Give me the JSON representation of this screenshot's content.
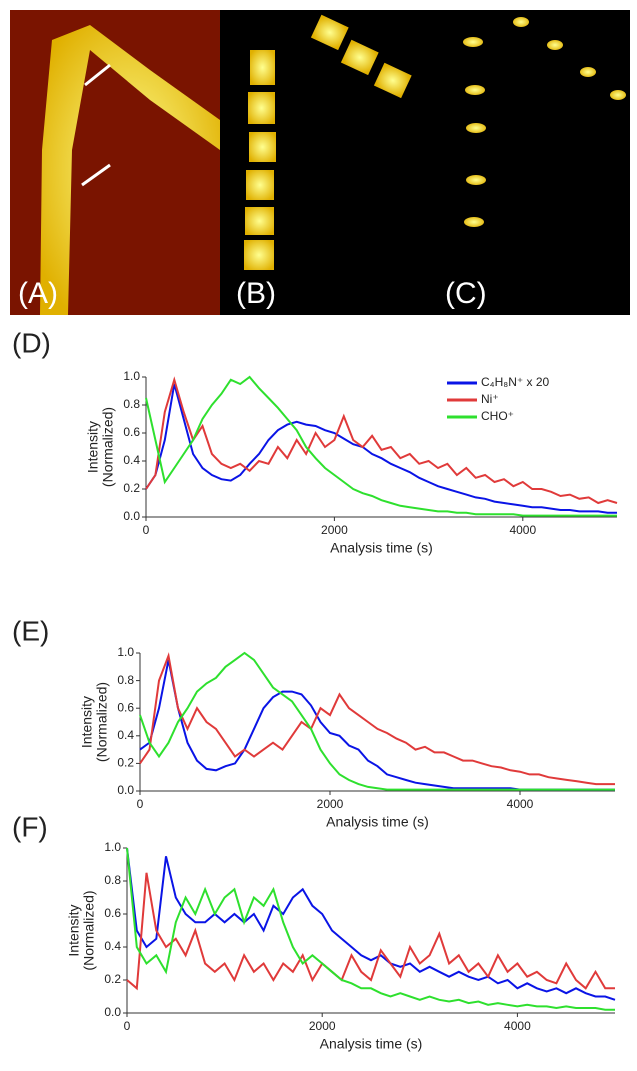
{
  "image_panels": [
    {
      "label": "(A)"
    },
    {
      "label": "(B)"
    },
    {
      "label": "(C)"
    }
  ],
  "chart_data": [
    {
      "type": "line",
      "title": "(D)",
      "xlabel": "Analysis time (s)",
      "ylabel": [
        "Intensity",
        "(Normalized)"
      ],
      "x": [
        0,
        100,
        200,
        300,
        400,
        500,
        600,
        700,
        800,
        900,
        1000,
        1100,
        1200,
        1300,
        1400,
        1500,
        1600,
        1700,
        1800,
        1900,
        2000,
        2100,
        2200,
        2300,
        2400,
        2500,
        2600,
        2700,
        2800,
        2900,
        3000,
        3100,
        3200,
        3300,
        3400,
        3500,
        3600,
        3700,
        3800,
        3900,
        4000,
        4100,
        4200,
        4300,
        4400,
        4500,
        4600,
        4700,
        4800,
        4900,
        5000
      ],
      "xlim": [
        0,
        5000
      ],
      "xticks": [
        0,
        2000,
        4000
      ],
      "ylim": [
        0,
        1
      ],
      "yticks": [
        {
          "value": 0,
          "label": "0.0"
        },
        0.2,
        0.4,
        0.6,
        0.8,
        {
          "value": 1,
          "label": "1.0"
        }
      ],
      "legend": "upper right",
      "series": [
        {
          "name": "C₄H₈N⁺ x 20",
          "color": "#0a14e6",
          "values": [
            0.2,
            0.3,
            0.55,
            0.95,
            0.7,
            0.45,
            0.35,
            0.3,
            0.27,
            0.26,
            0.3,
            0.38,
            0.45,
            0.55,
            0.62,
            0.66,
            0.68,
            0.66,
            0.65,
            0.62,
            0.6,
            0.56,
            0.52,
            0.5,
            0.45,
            0.42,
            0.38,
            0.35,
            0.32,
            0.28,
            0.25,
            0.22,
            0.2,
            0.18,
            0.16,
            0.14,
            0.13,
            0.11,
            0.1,
            0.09,
            0.08,
            0.07,
            0.07,
            0.06,
            0.05,
            0.05,
            0.04,
            0.04,
            0.04,
            0.03,
            0.03
          ]
        },
        {
          "name": "Ni⁺",
          "color": "#e03a3a",
          "values": [
            0.2,
            0.3,
            0.75,
            0.98,
            0.75,
            0.55,
            0.65,
            0.45,
            0.38,
            0.35,
            0.38,
            0.33,
            0.4,
            0.38,
            0.5,
            0.42,
            0.55,
            0.45,
            0.6,
            0.5,
            0.55,
            0.72,
            0.55,
            0.5,
            0.58,
            0.48,
            0.5,
            0.42,
            0.45,
            0.38,
            0.4,
            0.35,
            0.38,
            0.3,
            0.35,
            0.28,
            0.3,
            0.25,
            0.27,
            0.22,
            0.25,
            0.2,
            0.2,
            0.18,
            0.15,
            0.16,
            0.13,
            0.14,
            0.1,
            0.12,
            0.1
          ]
        },
        {
          "name": "CHO⁺",
          "color": "#2ee02e",
          "values": [
            0.85,
            0.55,
            0.25,
            0.35,
            0.45,
            0.55,
            0.7,
            0.8,
            0.88,
            0.98,
            0.95,
            1.0,
            0.92,
            0.85,
            0.78,
            0.7,
            0.62,
            0.5,
            0.42,
            0.35,
            0.3,
            0.25,
            0.2,
            0.17,
            0.15,
            0.12,
            0.1,
            0.08,
            0.07,
            0.06,
            0.05,
            0.04,
            0.04,
            0.03,
            0.03,
            0.02,
            0.02,
            0.02,
            0.02,
            0.02,
            0.01,
            0.01,
            0.01,
            0.01,
            0.01,
            0.01,
            0.01,
            0.01,
            0.01,
            0.01,
            0.01
          ]
        }
      ]
    },
    {
      "type": "line",
      "title": "(E)",
      "xlabel": "Analysis time (s)",
      "ylabel": [
        "Intensity",
        "(Normalized)"
      ],
      "x": [
        0,
        100,
        200,
        300,
        400,
        500,
        600,
        700,
        800,
        900,
        1000,
        1100,
        1200,
        1300,
        1400,
        1500,
        1600,
        1700,
        1800,
        1900,
        2000,
        2100,
        2200,
        2300,
        2400,
        2500,
        2600,
        2700,
        2800,
        2900,
        3000,
        3100,
        3200,
        3300,
        3400,
        3500,
        3600,
        3700,
        3800,
        3900,
        4000,
        4100,
        4200,
        4300,
        4400,
        4500,
        4600,
        4700,
        4800,
        4900,
        5000
      ],
      "xlim": [
        0,
        5000
      ],
      "xticks": [
        0,
        2000,
        4000
      ],
      "ylim": [
        0,
        1
      ],
      "yticks": [
        {
          "value": 0,
          "label": "0.0"
        },
        0.2,
        0.4,
        0.6,
        0.8,
        {
          "value": 1,
          "label": "1.0"
        }
      ],
      "series": [
        {
          "color": "#0a14e6",
          "values": [
            0.3,
            0.35,
            0.6,
            0.95,
            0.6,
            0.35,
            0.22,
            0.16,
            0.15,
            0.18,
            0.2,
            0.3,
            0.45,
            0.6,
            0.68,
            0.72,
            0.72,
            0.7,
            0.62,
            0.5,
            0.42,
            0.4,
            0.33,
            0.3,
            0.22,
            0.18,
            0.12,
            0.1,
            0.08,
            0.06,
            0.05,
            0.04,
            0.03,
            0.02,
            0.02,
            0.02,
            0.02,
            0.02,
            0.02,
            0.02,
            0.01,
            0.01,
            0.01,
            0.01,
            0.01,
            0.01,
            0.01,
            0.01,
            0.01,
            0.01,
            0.01
          ]
        },
        {
          "color": "#e03a3a",
          "values": [
            0.2,
            0.3,
            0.8,
            0.98,
            0.6,
            0.45,
            0.6,
            0.5,
            0.45,
            0.35,
            0.25,
            0.3,
            0.25,
            0.3,
            0.35,
            0.3,
            0.4,
            0.5,
            0.45,
            0.6,
            0.55,
            0.7,
            0.6,
            0.55,
            0.5,
            0.45,
            0.42,
            0.38,
            0.35,
            0.3,
            0.32,
            0.28,
            0.28,
            0.25,
            0.22,
            0.22,
            0.2,
            0.18,
            0.17,
            0.15,
            0.14,
            0.12,
            0.12,
            0.1,
            0.09,
            0.08,
            0.07,
            0.06,
            0.05,
            0.05,
            0.05
          ]
        },
        {
          "color": "#2ee02e",
          "values": [
            0.55,
            0.35,
            0.25,
            0.35,
            0.5,
            0.6,
            0.72,
            0.78,
            0.82,
            0.9,
            0.95,
            1.0,
            0.95,
            0.85,
            0.75,
            0.7,
            0.65,
            0.55,
            0.45,
            0.3,
            0.2,
            0.12,
            0.08,
            0.05,
            0.03,
            0.02,
            0.01,
            0.01,
            0.01,
            0.01,
            0.01,
            0.01,
            0.01,
            0.01,
            0.01,
            0.01,
            0.01,
            0.01,
            0.01,
            0.01,
            0.01,
            0.01,
            0.01,
            0.01,
            0.01,
            0.01,
            0.01,
            0.01,
            0.01,
            0.01,
            0.01
          ]
        }
      ]
    },
    {
      "type": "line",
      "title": "(F)",
      "xlabel": "Analysis time (s)",
      "ylabel": [
        "Intensity",
        "(Normalized)"
      ],
      "x": [
        0,
        100,
        200,
        300,
        400,
        500,
        600,
        700,
        800,
        900,
        1000,
        1100,
        1200,
        1300,
        1400,
        1500,
        1600,
        1700,
        1800,
        1900,
        2000,
        2100,
        2200,
        2300,
        2400,
        2500,
        2600,
        2700,
        2800,
        2900,
        3000,
        3100,
        3200,
        3300,
        3400,
        3500,
        3600,
        3700,
        3800,
        3900,
        4000,
        4100,
        4200,
        4300,
        4400,
        4500,
        4600,
        4700,
        4800,
        4900,
        5000
      ],
      "xlim": [
        0,
        5000
      ],
      "xticks": [
        0,
        2000,
        4000
      ],
      "ylim": [
        0,
        1
      ],
      "yticks": [
        {
          "value": 0,
          "label": "0.0"
        },
        0.2,
        0.4,
        0.6,
        0.8,
        {
          "value": 1,
          "label": "1.0"
        }
      ],
      "series": [
        {
          "color": "#0a14e6",
          "values": [
            1.0,
            0.5,
            0.4,
            0.45,
            0.95,
            0.7,
            0.6,
            0.55,
            0.55,
            0.6,
            0.55,
            0.6,
            0.55,
            0.6,
            0.5,
            0.65,
            0.6,
            0.7,
            0.75,
            0.65,
            0.6,
            0.5,
            0.45,
            0.4,
            0.35,
            0.32,
            0.35,
            0.3,
            0.28,
            0.3,
            0.25,
            0.28,
            0.25,
            0.22,
            0.25,
            0.22,
            0.2,
            0.22,
            0.18,
            0.2,
            0.15,
            0.18,
            0.15,
            0.13,
            0.15,
            0.12,
            0.15,
            0.12,
            0.1,
            0.1,
            0.08
          ]
        },
        {
          "color": "#e03a3a",
          "values": [
            0.2,
            0.15,
            0.85,
            0.5,
            0.4,
            0.45,
            0.35,
            0.5,
            0.3,
            0.25,
            0.3,
            0.2,
            0.35,
            0.25,
            0.3,
            0.2,
            0.3,
            0.25,
            0.35,
            0.2,
            0.3,
            0.25,
            0.2,
            0.35,
            0.25,
            0.2,
            0.38,
            0.3,
            0.22,
            0.4,
            0.3,
            0.35,
            0.48,
            0.3,
            0.35,
            0.25,
            0.3,
            0.22,
            0.35,
            0.25,
            0.3,
            0.22,
            0.25,
            0.2,
            0.18,
            0.3,
            0.2,
            0.15,
            0.25,
            0.15,
            0.15
          ]
        },
        {
          "color": "#2ee02e",
          "values": [
            1.0,
            0.4,
            0.3,
            0.35,
            0.25,
            0.55,
            0.7,
            0.6,
            0.75,
            0.6,
            0.7,
            0.75,
            0.55,
            0.7,
            0.65,
            0.75,
            0.55,
            0.4,
            0.3,
            0.35,
            0.3,
            0.25,
            0.2,
            0.18,
            0.15,
            0.15,
            0.12,
            0.1,
            0.12,
            0.1,
            0.08,
            0.1,
            0.08,
            0.07,
            0.08,
            0.06,
            0.07,
            0.05,
            0.06,
            0.05,
            0.04,
            0.05,
            0.04,
            0.04,
            0.03,
            0.04,
            0.03,
            0.03,
            0.03,
            0.02,
            0.02
          ]
        }
      ]
    }
  ]
}
